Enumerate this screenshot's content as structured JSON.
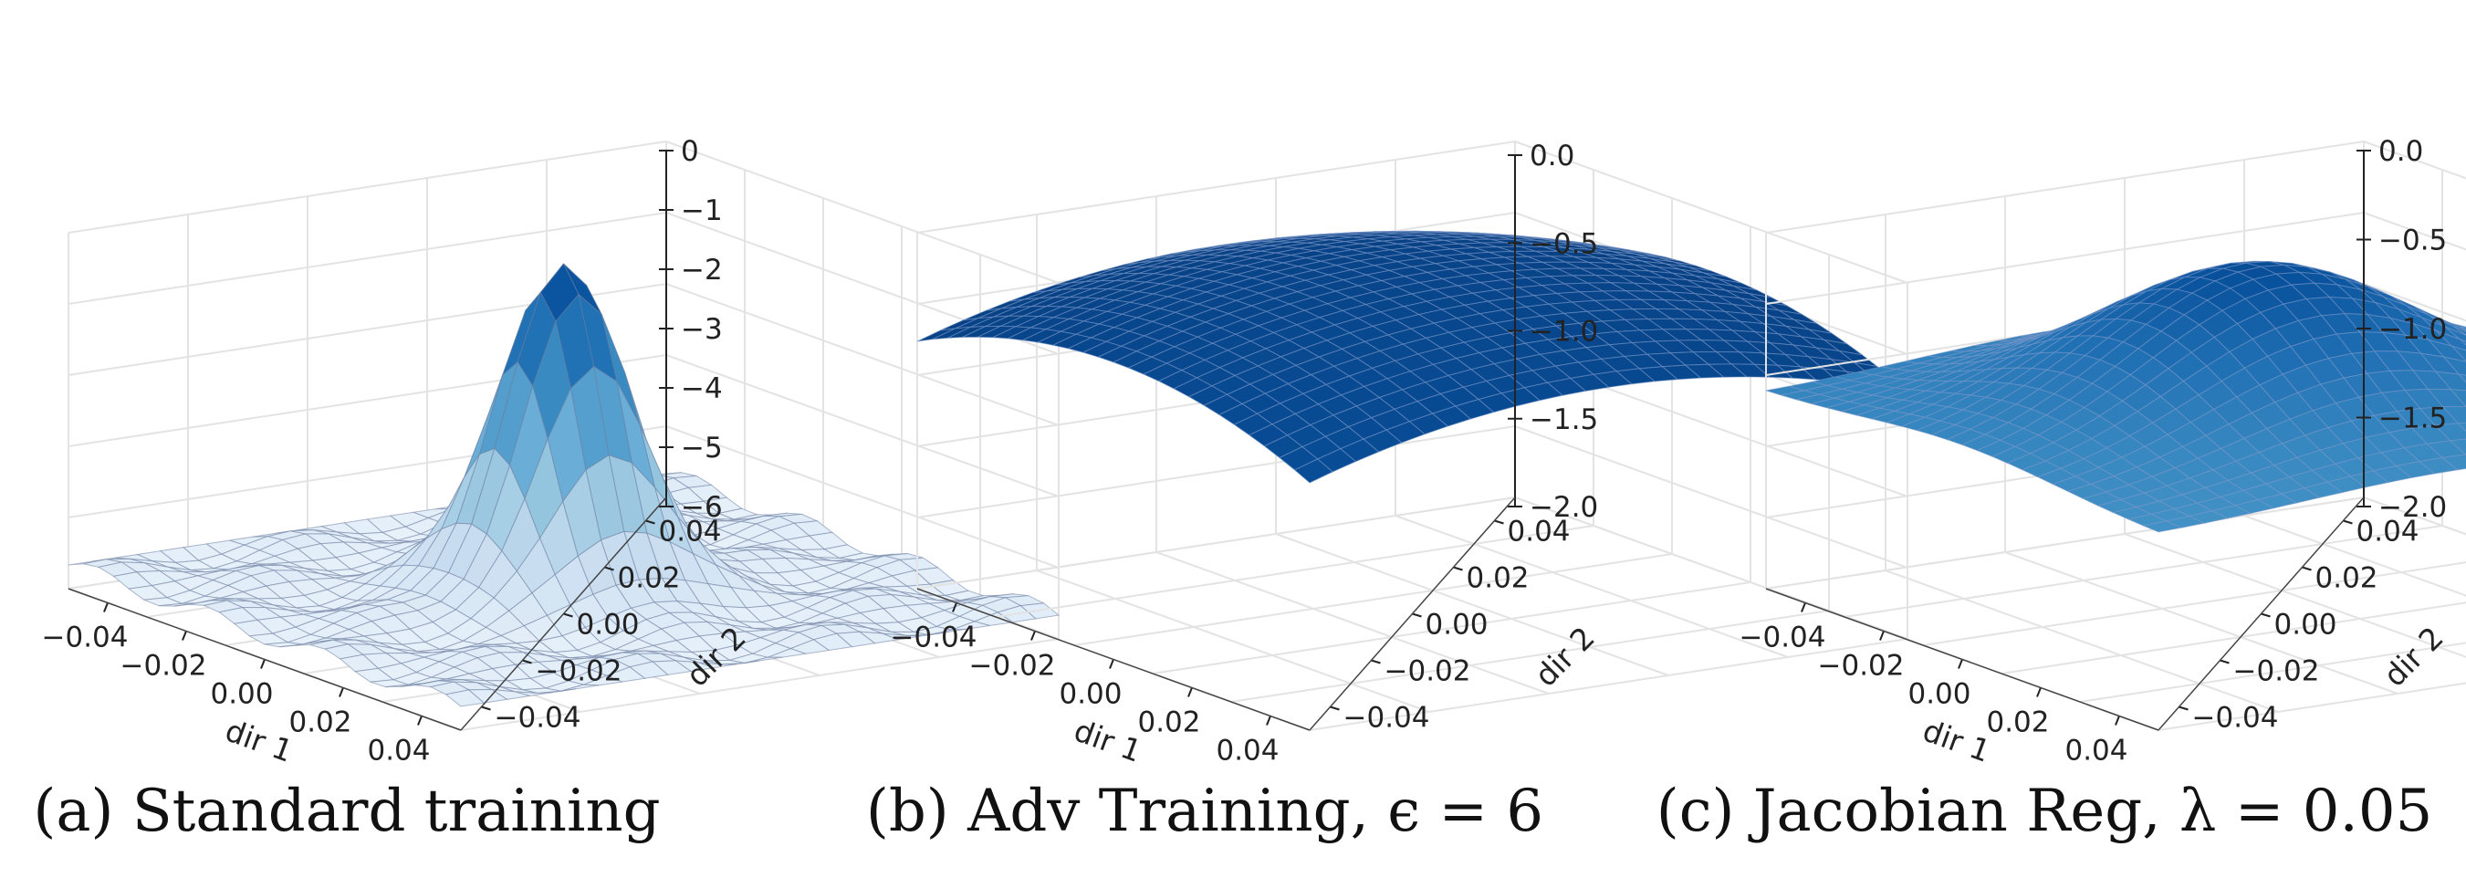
{
  "chart_data": [
    {
      "type": "surface3d",
      "caption": "(a) Standard training",
      "xlabel": "dir 1",
      "ylabel": "dir 2",
      "xticks": [
        "−0.04",
        "−0.02",
        "0.00",
        "0.02",
        "0.04"
      ],
      "yticks": [
        "−0.04",
        "−0.02",
        "0.00",
        "0.02",
        "0.04"
      ],
      "zticks": [
        "0",
        "−1",
        "−2",
        "−3",
        "−4",
        "−5",
        "−6"
      ],
      "xlim": [
        -0.05,
        0.05
      ],
      "ylim": [
        -0.05,
        0.05
      ],
      "zlim": [
        -6,
        0
      ],
      "grid": true,
      "surface": {
        "peak": -0.1,
        "base": -5.6,
        "shape": "sharp-peak",
        "ripple": 0.35,
        "colormap": "Blues"
      }
    },
    {
      "type": "surface3d",
      "caption": "(b) Adv Training, ϵ = 6",
      "xlabel": "dir 1",
      "ylabel": "dir 2",
      "xticks": [
        "−0.04",
        "−0.02",
        "0.00",
        "0.02",
        "0.04"
      ],
      "yticks": [
        "−0.04",
        "−0.02",
        "0.00",
        "0.02",
        "0.04"
      ],
      "zticks": [
        "0.0",
        "−0.5",
        "−1.0",
        "−1.5",
        "−2.0"
      ],
      "xlim": [
        -0.05,
        0.05
      ],
      "ylim": [
        -0.05,
        0.05
      ],
      "zlim": [
        -2,
        0
      ],
      "grid": true,
      "surface": {
        "peak": -0.05,
        "base": -0.75,
        "shape": "gentle-dome",
        "ripple": 0,
        "colormap": "Blues"
      }
    },
    {
      "type": "surface3d",
      "caption": "(c) Jacobian Reg, λ = 0.05",
      "xlabel": "dir 1",
      "ylabel": "dir 2",
      "xticks": [
        "−0.04",
        "−0.02",
        "0.00",
        "0.02",
        "0.04"
      ],
      "yticks": [
        "−0.04",
        "−0.02",
        "0.00",
        "0.02",
        "0.04"
      ],
      "zticks": [
        "0.0",
        "−0.5",
        "−1.0",
        "−1.5",
        "−2.0"
      ],
      "xlim": [
        -0.05,
        0.05
      ],
      "ylim": [
        -0.05,
        0.05
      ],
      "zlim": [
        -2,
        0
      ],
      "grid": true,
      "surface": {
        "peak": -0.05,
        "base": -0.9,
        "shape": "dome",
        "ripple": 0,
        "colormap": "Blues"
      }
    }
  ]
}
